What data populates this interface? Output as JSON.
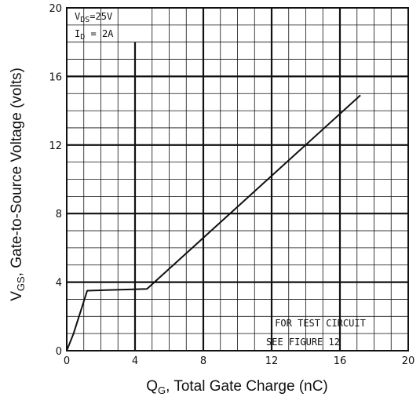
{
  "chart_data": {
    "type": "line",
    "xlabel_main": "Q",
    "xlabel_sub": "G",
    "xlabel_rest": ", Total Gate Charge (nC)",
    "ylabel_main": "V",
    "ylabel_sub": "GS",
    "ylabel_rest": ", Gate-to-Source Voltage (volts)",
    "xlim": [
      0,
      20
    ],
    "ylim": [
      0,
      20
    ],
    "x_ticks": [
      "0",
      "4",
      "8",
      "12",
      "16",
      "20"
    ],
    "y_ticks": [
      "0",
      "4",
      "8",
      "12",
      "16",
      "20"
    ],
    "grid": true,
    "conditions": {
      "vds_main": "V",
      "vds_sub": "DS",
      "vds_rest": "=25V",
      "id_main": "I",
      "id_sub": "D",
      "id_rest": " = 2A"
    },
    "note_line1": "FOR TEST CIRCUIT",
    "note_line2": "SEE FIGURE 12",
    "series": [
      {
        "x": [
          0,
          0.4,
          1.2,
          4.7,
          17.2
        ],
        "y": [
          0,
          1.0,
          3.5,
          3.6,
          14.9
        ]
      }
    ]
  }
}
